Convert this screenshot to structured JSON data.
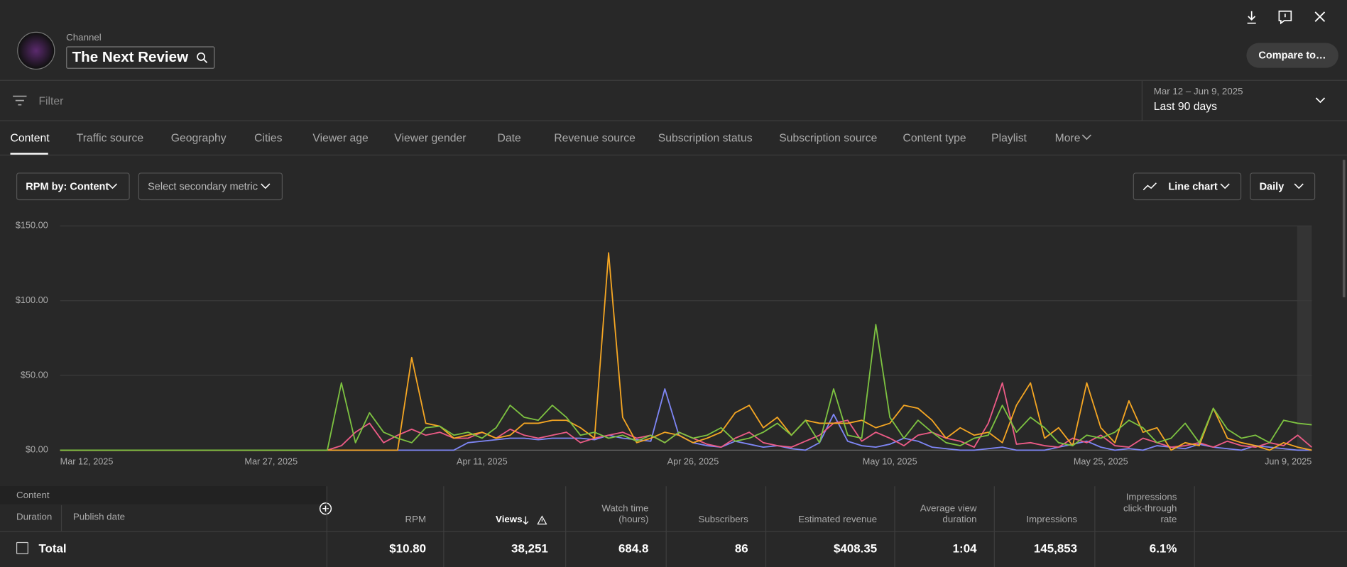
{
  "header": {
    "label": "Channel",
    "channel": "The Next Review",
    "compare": "Compare to…"
  },
  "filter": "Filter",
  "date_range": {
    "range": "Mar 12 – Jun 9, 2025",
    "period": "Last 90 days"
  },
  "tabs": [
    "Content",
    "Traffic source",
    "Geography",
    "Cities",
    "Viewer age",
    "Viewer gender",
    "Date",
    "Revenue source",
    "Subscription status",
    "Subscription source",
    "Content type",
    "Playlist",
    "More"
  ],
  "controls": {
    "metric": "RPM by: Content",
    "secondary": "Select secondary metric",
    "chart_type": "Line chart",
    "interval": "Daily"
  },
  "chart_data": {
    "type": "line",
    "categories": [
      "Mar 12, 2025",
      null,
      null,
      null,
      null,
      null,
      null,
      null,
      null,
      null,
      null,
      null,
      null,
      null,
      null,
      "Mar 27, 2025",
      null,
      null,
      null,
      null,
      null,
      null,
      null,
      null,
      null,
      null,
      null,
      null,
      null,
      null,
      "Apr 11, 2025",
      null,
      null,
      null,
      null,
      null,
      null,
      null,
      null,
      null,
      null,
      null,
      null,
      null,
      null,
      "Apr 26, 2025",
      null,
      null,
      null,
      null,
      null,
      null,
      null,
      null,
      null,
      null,
      null,
      null,
      null,
      "May 10, 2025",
      null,
      null,
      null,
      null,
      null,
      null,
      null,
      null,
      null,
      null,
      null,
      null,
      null,
      null,
      "May 25, 2025",
      null,
      null,
      null,
      null,
      null,
      null,
      null,
      null,
      null,
      null,
      null,
      null,
      null,
      null,
      "Jun 9, 2025"
    ],
    "series": [
      {
        "color": "#7e86f5",
        "values": [
          0,
          0,
          0,
          0,
          0,
          0,
          0,
          0,
          0,
          0,
          0,
          0,
          0,
          0,
          0,
          0,
          0,
          0,
          0,
          0,
          0,
          0,
          0,
          0,
          0,
          0,
          0,
          0,
          0,
          5,
          6,
          7,
          8,
          8,
          7,
          8,
          8,
          8,
          7,
          10,
          8,
          7,
          6,
          41,
          10,
          5,
          3,
          2,
          6,
          4,
          2,
          3,
          1,
          0,
          5,
          24,
          6,
          3,
          2,
          4,
          8,
          6,
          2,
          1,
          0,
          0,
          1,
          2,
          0,
          0,
          0,
          2,
          4,
          6,
          2,
          0,
          1,
          0,
          3,
          2,
          1,
          4,
          2,
          1,
          0,
          3,
          2,
          1,
          0,
          0
        ]
      },
      {
        "color": "#ec5b86",
        "values": [
          0,
          0,
          0,
          0,
          0,
          0,
          0,
          0,
          0,
          0,
          0,
          0,
          0,
          0,
          0,
          0,
          0,
          0,
          0,
          0,
          3,
          12,
          18,
          5,
          10,
          14,
          10,
          12,
          8,
          8,
          12,
          8,
          14,
          10,
          8,
          10,
          12,
          5,
          8,
          10,
          12,
          8,
          10,
          5,
          12,
          8,
          4,
          2,
          8,
          12,
          5,
          3,
          2,
          6,
          10,
          18,
          20,
          6,
          12,
          8,
          3,
          10,
          12,
          8,
          6,
          2,
          18,
          45,
          4,
          5,
          3,
          2,
          8,
          5,
          10,
          3,
          2,
          8,
          5,
          2,
          3,
          5,
          2,
          6,
          3,
          2,
          5,
          3,
          10,
          2
        ]
      },
      {
        "color": "#f5a623",
        "values": [
          0,
          0,
          0,
          0,
          0,
          0,
          0,
          0,
          0,
          0,
          0,
          0,
          0,
          0,
          0,
          0,
          0,
          0,
          0,
          0,
          0,
          0,
          0,
          0,
          0,
          62,
          18,
          16,
          8,
          10,
          12,
          8,
          10,
          18,
          18,
          20,
          20,
          15,
          8,
          132,
          22,
          5,
          8,
          12,
          10,
          5,
          8,
          12,
          25,
          30,
          15,
          22,
          10,
          20,
          18,
          18,
          18,
          20,
          15,
          18,
          30,
          28,
          20,
          8,
          15,
          10,
          12,
          5,
          30,
          45,
          8,
          15,
          3,
          45,
          15,
          5,
          33,
          12,
          15,
          0,
          5,
          3,
          28,
          8,
          5,
          3,
          0,
          5,
          2,
          0
        ]
      },
      {
        "color": "#7dc241",
        "values": [
          0,
          0,
          0,
          0,
          0,
          0,
          0,
          0,
          0,
          0,
          0,
          0,
          0,
          0,
          0,
          0,
          0,
          0,
          0,
          0,
          45,
          5,
          25,
          12,
          8,
          5,
          15,
          16,
          10,
          12,
          8,
          15,
          30,
          22,
          20,
          30,
          22,
          10,
          12,
          8,
          10,
          6,
          10,
          5,
          12,
          8,
          10,
          15,
          6,
          8,
          12,
          18,
          10,
          20,
          5,
          41,
          10,
          8,
          84,
          22,
          8,
          20,
          12,
          5,
          3,
          8,
          10,
          30,
          12,
          22,
          15,
          5,
          3,
          10,
          8,
          12,
          20,
          15,
          5,
          8,
          18,
          5,
          28,
          14,
          8,
          10,
          5,
          20,
          18,
          17
        ]
      }
    ],
    "ylim": [
      0,
      150
    ],
    "yticks": [
      {
        "value": 0,
        "label": "$0.00"
      },
      {
        "value": 50,
        "label": "$50.00"
      },
      {
        "value": 100,
        "label": "$100.00"
      },
      {
        "value": 150,
        "label": "$150.00"
      }
    ],
    "grid": true
  },
  "table": {
    "content": "Content",
    "duration": "Duration",
    "publish_date": "Publish date",
    "columns": [
      "RPM",
      "Views",
      "Watch time\n(hours)",
      "Subscribers",
      "Estimated revenue",
      "Average view\nduration",
      "Impressions",
      "Impressions\nclick-through\nrate"
    ],
    "total_label": "Total",
    "total": [
      "$10.80",
      "38,251",
      "684.8",
      "86",
      "$408.35",
      "1:04",
      "145,853",
      "6.1%"
    ]
  }
}
